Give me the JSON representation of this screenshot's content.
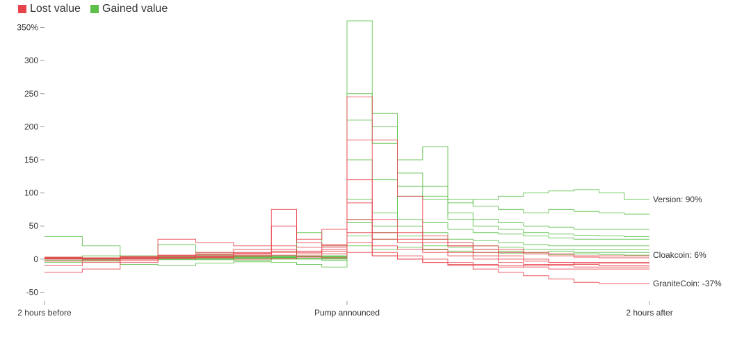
{
  "colors": {
    "lost": "#e8424b",
    "gained": "#5cbf4a"
  },
  "legend": [
    {
      "label": "Lost value",
      "color_key": "lost"
    },
    {
      "label": "Gained value",
      "color_key": "gained"
    }
  ],
  "chart_data": {
    "type": "line",
    "step": true,
    "title": "",
    "xlabel": "",
    "ylabel": "",
    "xlim": [
      -120,
      120
    ],
    "ylim": [
      -60,
      360
    ],
    "x_ticks": [
      {
        "value": -120,
        "label": "2 hours before"
      },
      {
        "value": 0,
        "label": "Pump announced"
      },
      {
        "value": 120,
        "label": "2 hours after"
      }
    ],
    "y_ticks": [
      {
        "value": 350,
        "label": "350%"
      },
      {
        "value": 300,
        "label": "300"
      },
      {
        "value": 250,
        "label": "250"
      },
      {
        "value": 200,
        "label": "200"
      },
      {
        "value": 150,
        "label": "150"
      },
      {
        "value": 100,
        "label": "100"
      },
      {
        "value": 50,
        "label": "50"
      },
      {
        "value": 0,
        "label": "0"
      },
      {
        "value": -50,
        "label": "-50"
      }
    ],
    "x": [
      -120,
      -105,
      -90,
      -75,
      -60,
      -45,
      -30,
      -20,
      -10,
      0,
      10,
      20,
      30,
      40,
      50,
      60,
      70,
      80,
      90,
      100,
      110,
      120
    ],
    "series": [
      {
        "name": "Version",
        "group": "gained",
        "values": [
          0,
          2,
          1,
          3,
          2,
          4,
          3,
          5,
          4,
          60,
          50,
          95,
          90,
          85,
          90,
          95,
          100,
          103,
          105,
          100,
          90,
          90
        ]
      },
      {
        "name": "Cloakcoin",
        "group": "gained",
        "values": [
          2,
          0,
          1,
          2,
          3,
          2,
          4,
          3,
          5,
          20,
          15,
          18,
          14,
          12,
          10,
          9,
          8,
          7,
          8,
          7,
          6,
          6
        ]
      },
      {
        "name": "GraniteCoin",
        "group": "lost",
        "values": [
          1,
          0,
          -2,
          1,
          2,
          0,
          1,
          3,
          2,
          10,
          5,
          0,
          -5,
          -10,
          -15,
          -20,
          -25,
          -30,
          -35,
          -37,
          -37,
          -37
        ]
      },
      {
        "group": "gained",
        "values": [
          34,
          20,
          5,
          3,
          2,
          3,
          2,
          4,
          3,
          360,
          220,
          150,
          170,
          90,
          80,
          75,
          70,
          75,
          72,
          70,
          68,
          68
        ]
      },
      {
        "group": "gained",
        "values": [
          0,
          1,
          2,
          22,
          10,
          5,
          3,
          40,
          20,
          250,
          200,
          130,
          110,
          70,
          60,
          55,
          50,
          48,
          45,
          45,
          45,
          45
        ]
      },
      {
        "group": "gained",
        "values": [
          -5,
          -3,
          -8,
          -10,
          -6,
          -4,
          -5,
          -8,
          -12,
          210,
          175,
          110,
          95,
          60,
          50,
          45,
          40,
          38,
          36,
          35,
          34,
          34
        ]
      },
      {
        "group": "gained",
        "values": [
          3,
          5,
          2,
          4,
          6,
          3,
          5,
          4,
          -2,
          150,
          120,
          60,
          55,
          45,
          40,
          38,
          35,
          32,
          30,
          30,
          30,
          30
        ]
      },
      {
        "group": "gained",
        "values": [
          -2,
          0,
          2,
          1,
          -1,
          0,
          2,
          1,
          3,
          90,
          70,
          50,
          40,
          30,
          28,
          25,
          22,
          20,
          20,
          20,
          20,
          20
        ]
      },
      {
        "group": "gained",
        "values": [
          0,
          -1,
          1,
          0,
          1,
          -2,
          0,
          1,
          0,
          55,
          40,
          35,
          30,
          25,
          20,
          18,
          15,
          15,
          14,
          14,
          14,
          14
        ]
      },
      {
        "group": "gained",
        "values": [
          1,
          2,
          0,
          -1,
          0,
          1,
          2,
          0,
          1,
          35,
          30,
          25,
          20,
          18,
          15,
          12,
          10,
          12,
          10,
          10,
          10,
          10
        ]
      },
      {
        "group": "lost",
        "values": [
          -20,
          -15,
          -5,
          30,
          25,
          20,
          75,
          30,
          45,
          245,
          180,
          95,
          35,
          25,
          20,
          15,
          10,
          8,
          5,
          5,
          5,
          5
        ]
      },
      {
        "group": "lost",
        "values": [
          -10,
          -5,
          0,
          5,
          10,
          15,
          50,
          25,
          20,
          180,
          60,
          40,
          30,
          20,
          10,
          5,
          0,
          -5,
          -8,
          -10,
          -10,
          -10
        ]
      },
      {
        "group": "lost",
        "values": [
          3,
          2,
          4,
          6,
          8,
          10,
          20,
          18,
          22,
          120,
          40,
          30,
          25,
          20,
          15,
          10,
          8,
          5,
          3,
          2,
          2,
          2
        ]
      },
      {
        "group": "lost",
        "values": [
          2,
          1,
          3,
          5,
          7,
          9,
          15,
          12,
          18,
          85,
          30,
          25,
          15,
          10,
          5,
          0,
          -3,
          -5,
          -5,
          -6,
          -6,
          -6
        ]
      },
      {
        "group": "lost",
        "values": [
          -3,
          -2,
          0,
          2,
          4,
          6,
          10,
          8,
          12,
          60,
          20,
          15,
          10,
          5,
          0,
          -5,
          -8,
          -10,
          -12,
          -12,
          -12,
          -12
        ]
      },
      {
        "group": "lost",
        "values": [
          0,
          1,
          2,
          3,
          5,
          8,
          12,
          10,
          15,
          40,
          10,
          5,
          0,
          -5,
          -8,
          -10,
          -12,
          -15,
          -15,
          -15,
          -15,
          -15
        ]
      },
      {
        "group": "lost",
        "values": [
          1,
          0,
          1,
          2,
          3,
          4,
          6,
          5,
          8,
          25,
          5,
          0,
          -5,
          -8,
          -10,
          -12,
          -10,
          -8,
          -6,
          -5,
          -5,
          -5
        ]
      }
    ],
    "end_labels": [
      {
        "text": "Version: 90%",
        "value": 90
      },
      {
        "text": "Cloakcoin: 6%",
        "value": 6
      },
      {
        "text": "GraniteCoin: -37%",
        "value": -37
      }
    ]
  }
}
